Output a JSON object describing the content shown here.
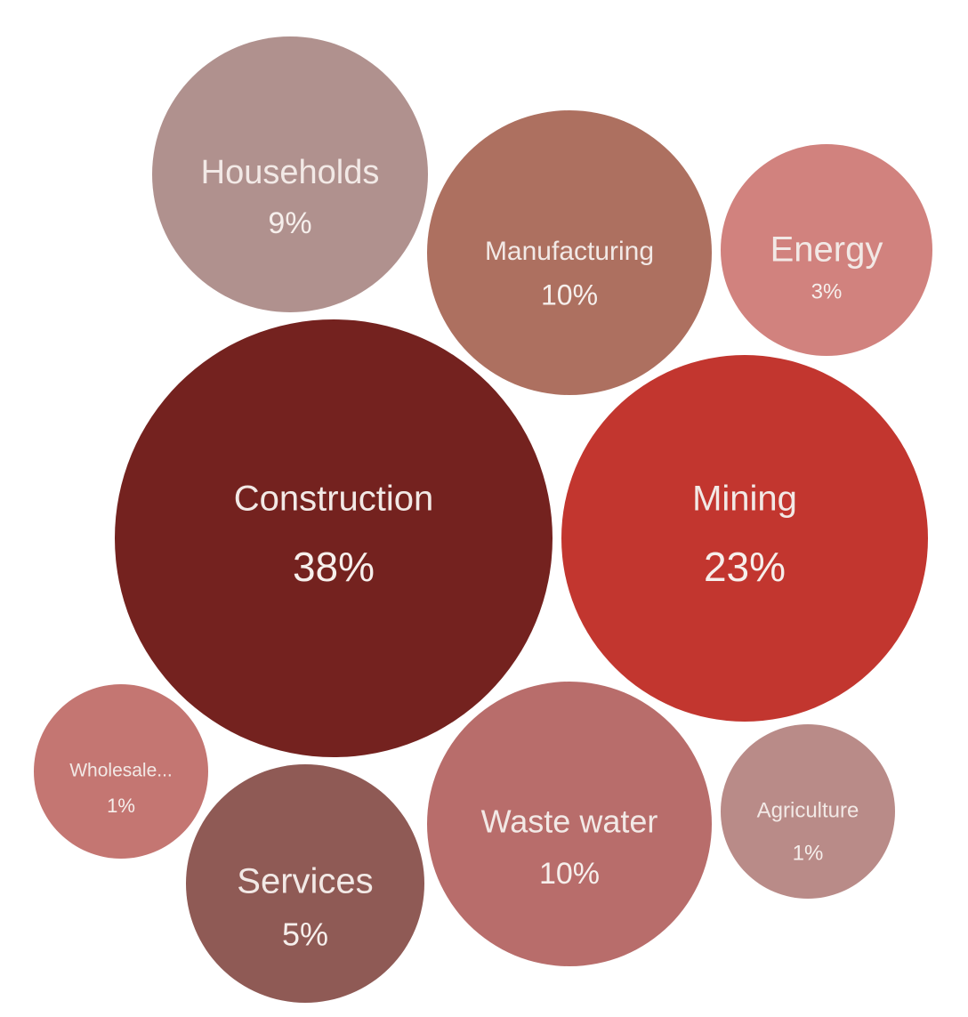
{
  "chart_data": {
    "type": "bubble",
    "title": "",
    "legend": "none",
    "items": [
      {
        "label": "Construction",
        "value": 38,
        "value_label": "38%",
        "color": "#74221f"
      },
      {
        "label": "Mining",
        "value": 23,
        "value_label": "23%",
        "color": "#c2362f"
      },
      {
        "label": "Manufacturing",
        "value": 10,
        "value_label": "10%",
        "color": "#ad7060"
      },
      {
        "label": "Waste water",
        "value": 10,
        "value_label": "10%",
        "color": "#b86d6b"
      },
      {
        "label": "Households",
        "value": 9,
        "value_label": "9%",
        "color": "#b0918e"
      },
      {
        "label": "Services",
        "value": 5,
        "value_label": "5%",
        "color": "#8f5a55"
      },
      {
        "label": "Energy",
        "value": 3,
        "value_label": "3%",
        "color": "#d1827e"
      },
      {
        "label": "Agriculture",
        "value": 1,
        "value_label": "1%",
        "color": "#b98b88"
      },
      {
        "label": "Wholesale...",
        "value": 1,
        "value_label": "1%",
        "color": "#c47672"
      }
    ]
  }
}
